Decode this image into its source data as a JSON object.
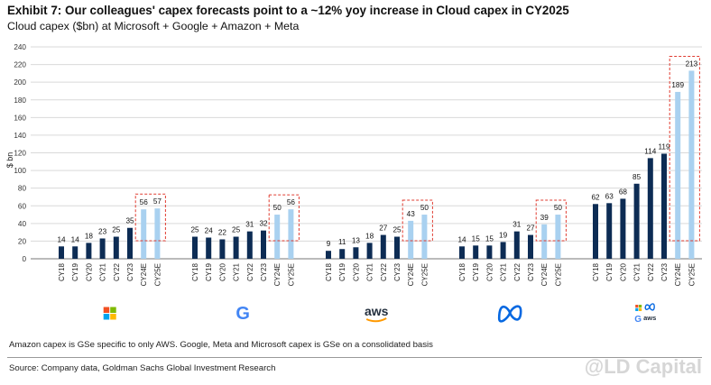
{
  "title": "Exhibit 7: Our colleagues' capex forecasts point to a ~12% yoy increase in Cloud capex in CY2025",
  "subtitle": "Cloud capex ($bn) at Microsoft + Google + Amazon + Meta",
  "note": "Amazon capex is GSe specific to only AWS. Google, Meta and Microsoft capex is GSe on a consolidated basis",
  "source": "Source: Company data, Goldman Sachs Global Investment Research",
  "watermark": "@LD Capital",
  "colors": {
    "actual": "#0d2c54",
    "estimate": "#a9d1f0",
    "highlight_box": "#e03c31",
    "grid": "#d9d9d9"
  },
  "chart_data": {
    "type": "bar",
    "ylabel": "$ bn",
    "ylim": [
      0,
      240
    ],
    "yticks": [
      0,
      20,
      40,
      60,
      80,
      100,
      120,
      140,
      160,
      180,
      200,
      220,
      240
    ],
    "grid": true,
    "categories": [
      "CY18",
      "CY19",
      "CY20",
      "CY21",
      "CY22",
      "CY23",
      "CY24E",
      "CY25E"
    ],
    "estimate_categories": [
      "CY24E",
      "CY25E"
    ],
    "groups": [
      {
        "logo": "microsoft-logo",
        "values": [
          14,
          14,
          18,
          23,
          25,
          35,
          56,
          57
        ]
      },
      {
        "logo": "google-logo",
        "values": [
          25,
          24,
          22,
          25,
          31,
          32,
          50,
          56
        ]
      },
      {
        "logo": "aws-logo",
        "logo_text": "aws",
        "values": [
          9,
          11,
          13,
          18,
          27,
          25,
          43,
          50
        ]
      },
      {
        "logo": "meta-logo",
        "values": [
          14,
          15,
          15,
          19,
          31,
          27,
          39,
          50
        ]
      },
      {
        "logo": "combined-logos",
        "logo_text": "aws",
        "values": [
          62,
          63,
          68,
          85,
          114,
          119,
          189,
          213
        ]
      }
    ]
  }
}
